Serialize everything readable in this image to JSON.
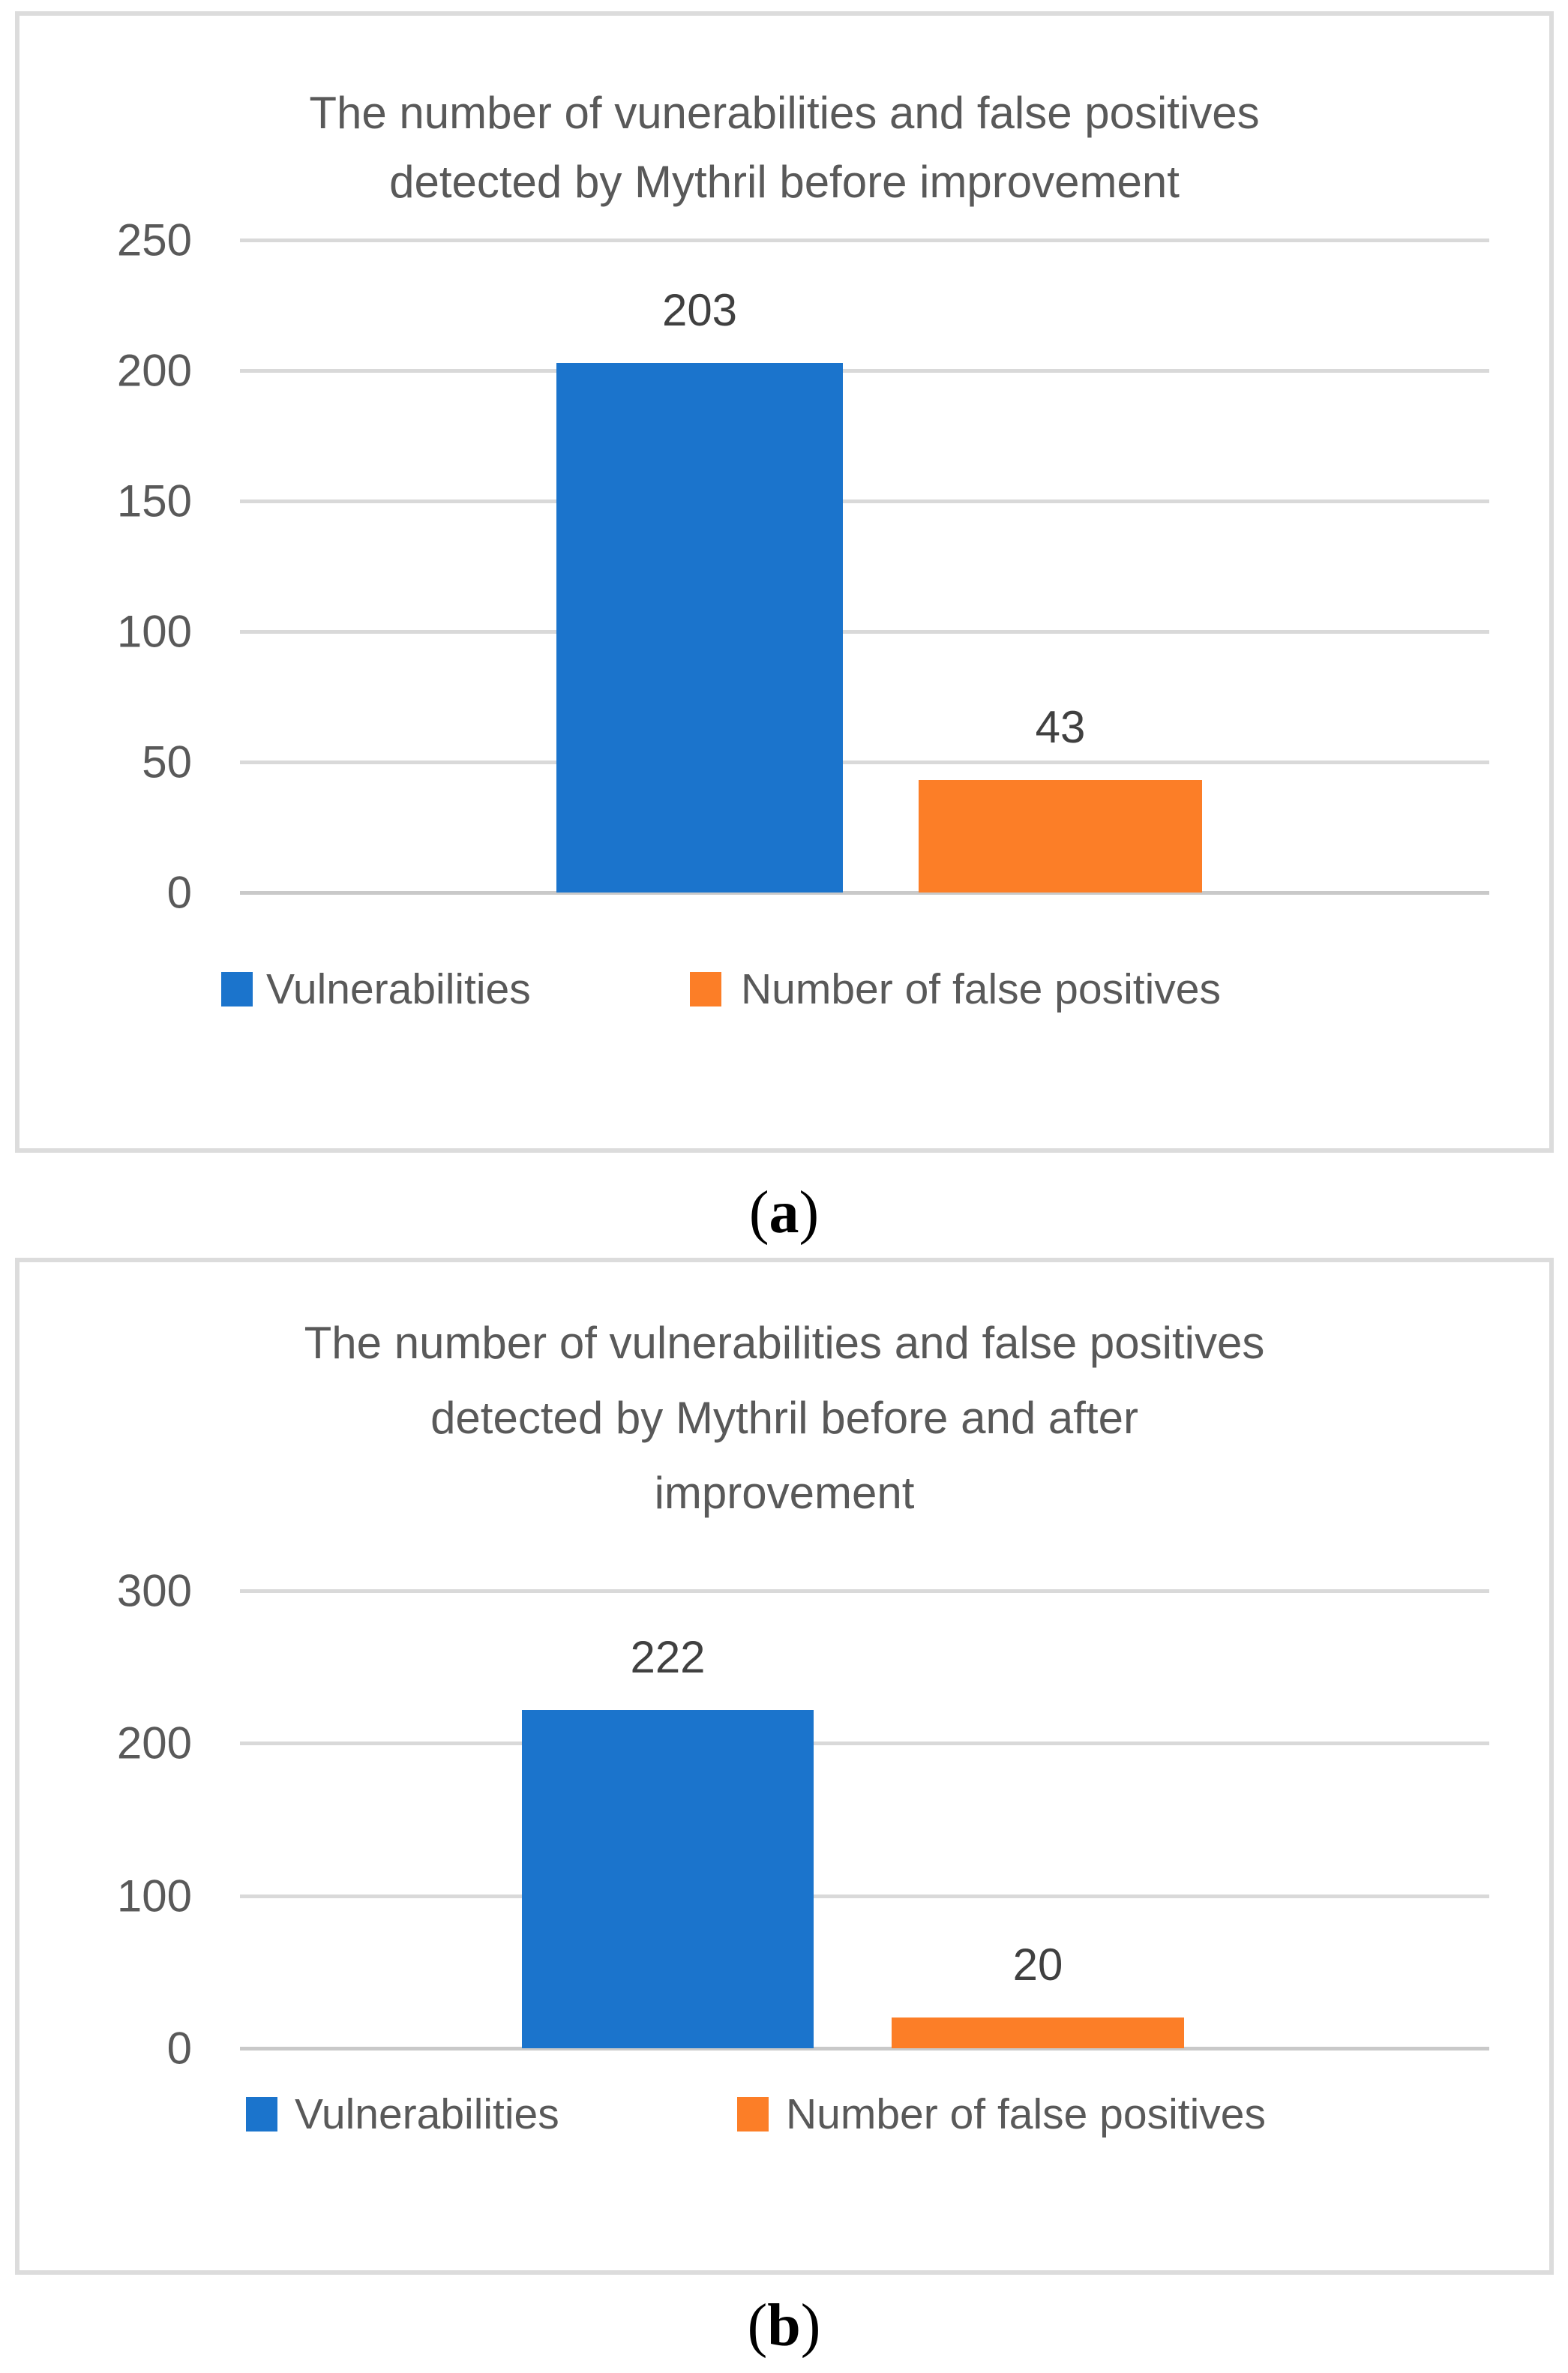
{
  "ui": {
    "captions": [
      {
        "open": "(",
        "letter": "a",
        "close": ")"
      },
      {
        "open": "(",
        "letter": "b",
        "close": ")"
      }
    ]
  },
  "colors": {
    "series_blue": "#1B74CC",
    "series_orange": "#FC7E27",
    "gridline": "#D9D9D9",
    "axis_line": "#C9C9C9",
    "panel_border": "#DCDCDC",
    "title_text": "#595959",
    "tick_text": "#595959",
    "data_label_text": "#404040",
    "legend_text": "#595959",
    "caption_text": "#000000"
  },
  "chart_data": [
    {
      "type": "bar",
      "title": "The number of vunerabilities and false positives detected by Mythril before improvement",
      "title_lines": [
        "The number of vunerabilities and false positives",
        "detected by Mythril before improvement"
      ],
      "categories": [
        "Vulnerabilities",
        "Number of false positives"
      ],
      "values": [
        203,
        43
      ],
      "data_labels": [
        "203",
        "43"
      ],
      "colors": [
        "#1B74CC",
        "#FC7E27"
      ],
      "ylim": [
        0,
        250
      ],
      "yticks": [
        0,
        50,
        100,
        150,
        200,
        250
      ],
      "grid": true,
      "xlabel": "",
      "ylabel": "",
      "legend": [
        "Vulnerabilities",
        "Number of false positives"
      ],
      "legend_position": "bottom"
    },
    {
      "type": "bar",
      "title": "The number of vulnerabilities and false positives detected by Mythril before and after improvement",
      "title_lines": [
        "The number of vulnerabilities and false positives",
        "detected by Mythril before and after",
        "improvement"
      ],
      "categories": [
        "Vulnerabilities",
        "Number of false positives"
      ],
      "values": [
        222,
        20
      ],
      "data_labels": [
        "222",
        "20"
      ],
      "colors": [
        "#1B74CC",
        "#FC7E27"
      ],
      "ylim": [
        0,
        300
      ],
      "yticks": [
        0,
        100,
        200,
        300
      ],
      "grid": true,
      "xlabel": "",
      "ylabel": "",
      "legend": [
        "Vulnerabilities",
        "Number of false positives"
      ],
      "legend_position": "bottom"
    }
  ]
}
